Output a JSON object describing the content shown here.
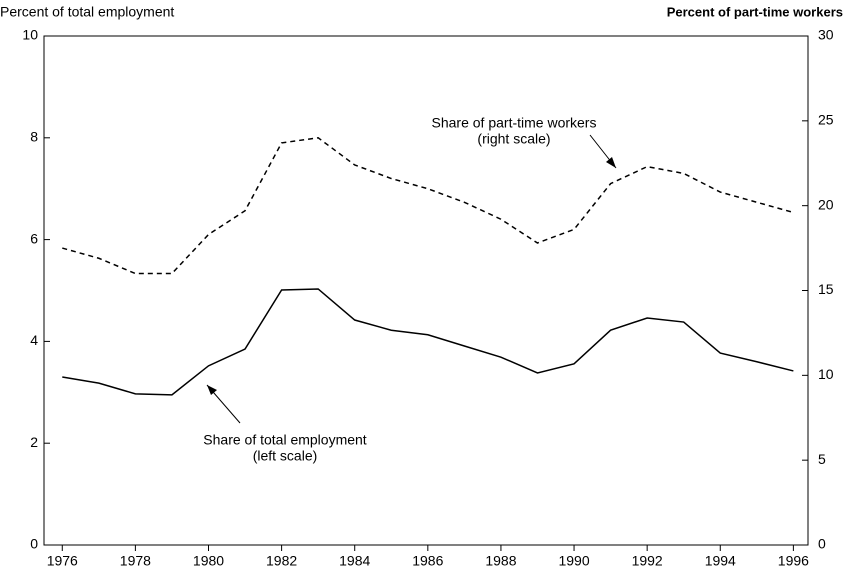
{
  "chart_data": {
    "type": "line",
    "y_label": "Percent of total employment",
    "y2_label": "Percent of part-time workers",
    "x": [
      1976,
      1977,
      1978,
      1979,
      1980,
      1981,
      1982,
      1983,
      1984,
      1985,
      1986,
      1987,
      1988,
      1989,
      1990,
      1991,
      1992,
      1993,
      1994,
      1995,
      1996
    ],
    "series": [
      {
        "name": "Share of total employment",
        "color": "#000000",
        "dash": "solid",
        "values": [
          3.3,
          3.18,
          2.97,
          2.95,
          3.52,
          3.85,
          5.01,
          5.03,
          4.42,
          4.22,
          4.13,
          3.91,
          3.69,
          3.38,
          3.56,
          4.22,
          4.46,
          4.38,
          3.77,
          3.6,
          3.42
        ]
      },
      {
        "name": "Share of part-time workers",
        "color": "#000000",
        "dash": "dashed",
        "axis": "y2",
        "values": [
          17.5,
          16.9,
          16.0,
          16.0,
          18.3,
          19.7,
          23.7,
          24.0,
          22.4,
          21.6,
          21.0,
          20.2,
          19.2,
          17.8,
          18.6,
          21.3,
          22.3,
          21.9,
          20.8,
          20.2,
          19.6
        ]
      }
    ],
    "annotations": [
      {
        "lines": [
          "Share of part-time workers",
          "(right scale)"
        ]
      },
      {
        "lines": [
          "Share of total employment",
          "(left scale)"
        ]
      }
    ],
    "xlim": [
      1975.5,
      1996.4
    ],
    "xticks": [
      1976,
      1978,
      1980,
      1982,
      1984,
      1986,
      1988,
      1990,
      1992,
      1994,
      1996
    ],
    "ylim": [
      0,
      10
    ],
    "yticks": [
      0,
      2,
      4,
      6,
      8,
      10
    ],
    "y2lim": [
      0,
      30
    ],
    "y2ticks": [
      0,
      5,
      10,
      15,
      20,
      25,
      30
    ],
    "grid": false
  }
}
